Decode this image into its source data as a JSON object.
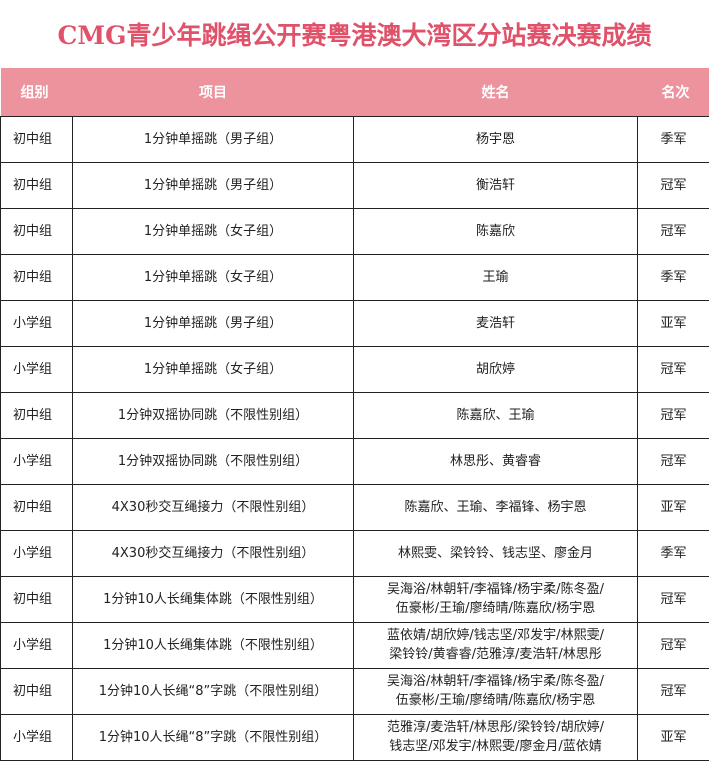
{
  "title": "CMG青少年跳绳公开赛粤港澳大湾区分站赛决赛成绩",
  "headers": [
    "组别",
    "项目",
    "姓名",
    "名次"
  ],
  "rows": [
    [
      "初中组",
      "1分钟单摇跳（男子组）",
      "杨宇恩",
      "季军"
    ],
    [
      "初中组",
      "1分钟单摇跳（男子组）",
      "衡浩轩",
      "冠军"
    ],
    [
      "初中组",
      "1分钟单摇跳（女子组）",
      "陈嘉欣",
      "冠军"
    ],
    [
      "初中组",
      "1分钟单摇跳（女子组）",
      "王瑜",
      "季军"
    ],
    [
      "小学组",
      "1分钟单摇跳（男子组）",
      "麦浩轩",
      "亚军"
    ],
    [
      "小学组",
      "1分钟单摇跳（女子组）",
      "胡欣婷",
      "冠军"
    ],
    [
      "初中组",
      "1分钟双摇协同跳（不限性别组）",
      "陈嘉欣、王瑜",
      "冠军"
    ],
    [
      "小学组",
      "1分钟双摇协同跳（不限性别组）",
      "林思彤、黄睿睿",
      "冠军"
    ],
    [
      "初中组",
      "4X30秒交互绳接力（不限性别组）",
      "陈嘉欣、王瑜、李福锋、杨宇恩",
      "亚军"
    ],
    [
      "小学组",
      "4X30秒交互绳接力（不限性别组）",
      "林熙雯、梁铃铃、钱志坚、廖金月",
      "季军"
    ],
    [
      "初中组",
      "1分钟10人长绳集体跳（不限性别组）",
      "吴海浴/林朝轩/李福锋/杨宇柔/陈冬盈/\n伍豪彬/王瑜/廖绮晴/陈嘉欣/杨宇恩",
      "冠军"
    ],
    [
      "小学组",
      "1分钟10人长绳集体跳（不限性别组）",
      "蓝依婧/胡欣婷/钱志坚/邓发宇/林熙雯/\n梁铃铃/黄睿睿/范雅淳/麦浩轩/林思彤",
      "冠军"
    ],
    [
      "初中组",
      "1分钟10人长绳“8”字跳（不限性别组）",
      "吴海浴/林朝轩/李福锋/杨宇柔/陈冬盈/\n伍豪彬/王瑜/廖绮晴/陈嘉欣/杨宇恩",
      "冠军"
    ],
    [
      "小学组",
      "1分钟10人长绳“8”字跳（不限性别组）",
      "范雅淳/麦浩轩/林思彤/梁铃铃/胡欣婷/\n钱志坚/邓发宇/林熙雯/廖金月/蓝依婧",
      "亚军"
    ]
  ]
}
